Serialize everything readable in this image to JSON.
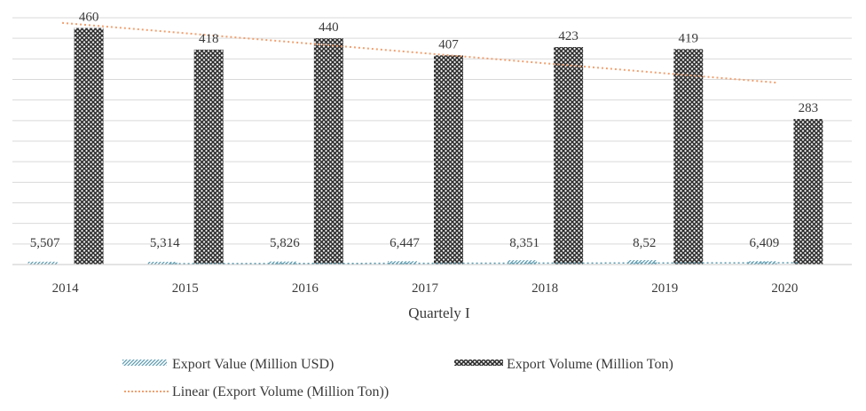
{
  "chart_data": {
    "type": "bar",
    "title": "",
    "xlabel": "Quartely I",
    "ylabel": "",
    "categories": [
      "2014",
      "2015",
      "2016",
      "2017",
      "2018",
      "2019",
      "2020"
    ],
    "series": [
      {
        "name": "Export Value (Million USD)",
        "values": [
          5.507,
          5.314,
          5.826,
          6.447,
          8.351,
          8.52,
          6.409
        ],
        "labels": [
          "5,507",
          "5,314",
          "5,826",
          "6,447",
          "8,351",
          "8,52",
          "6,409"
        ],
        "fill_pattern": "diagonal-lines",
        "color": "#5b9bb0"
      },
      {
        "name": "Export Volume (Million Ton)",
        "values": [
          460,
          418,
          440,
          407,
          423,
          419,
          283
        ],
        "labels": [
          "460",
          "418",
          "440",
          "407",
          "423",
          "419",
          "283"
        ],
        "fill_pattern": "crosshatch",
        "color": "#2a2a2a"
      }
    ],
    "trendline": {
      "name": "Linear (Export Volume (Million Ton))",
      "type": "linear",
      "series": "Export Volume (Million Ton)",
      "color": "#f0a070",
      "style": "dotted"
    },
    "ylim": [
      0,
      480
    ],
    "grid": true,
    "legend": "bottom"
  }
}
